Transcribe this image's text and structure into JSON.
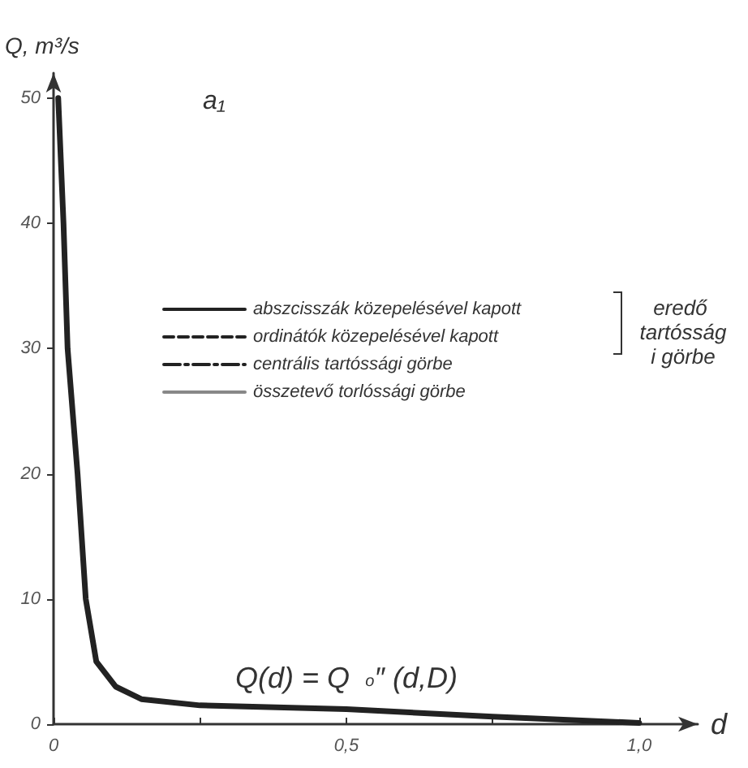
{
  "chart_data": {
    "type": "line",
    "xlabel": "d",
    "ylabel": "Q, m³/s",
    "x": [
      0.008,
      0.017,
      0.024,
      0.041,
      0.055,
      0.073,
      0.106,
      0.15,
      0.25,
      0.5,
      0.75,
      1.0
    ],
    "series": [
      {
        "name": "abszcisszák közepelésével kapott",
        "color": "#222222",
        "line_style": "solid",
        "values": [
          50,
          40,
          30,
          20,
          10,
          5,
          3,
          2,
          1.5,
          1.2,
          0.6,
          0.1
        ]
      },
      {
        "name": "ordinátók közepelésével kapott",
        "color": "#222222",
        "line_style": "dashed",
        "values": [
          null,
          null,
          null,
          null,
          null,
          null,
          null,
          null,
          null,
          null,
          null,
          null
        ]
      },
      {
        "name": "centrális tartóssági görbe",
        "color": "#222222",
        "line_style": "dashdot",
        "values": [
          null,
          null,
          null,
          null,
          null,
          null,
          null,
          null,
          null,
          null,
          null,
          null
        ]
      },
      {
        "name": "összetevő torlóssági görbe",
        "color": "#888888",
        "line_style": "solid",
        "values": [
          null,
          null,
          null,
          null,
          null,
          null,
          null,
          null,
          null,
          null,
          null,
          null
        ]
      }
    ],
    "xlim": [
      0,
      1.1
    ],
    "xticks": [
      {
        "value": 0,
        "label": "0"
      },
      {
        "value": 0.25,
        "label": null
      },
      {
        "value": 0.5,
        "label": "0,5"
      },
      {
        "value": 0.75,
        "label": null
      },
      {
        "value": 1.0,
        "label": "1,0"
      }
    ],
    "ylim": [
      0,
      52
    ],
    "yticks": [
      0,
      10,
      20,
      30,
      40,
      50
    ],
    "grid": false,
    "legend": "top left",
    "marker": "none",
    "annotations": [
      "a₁",
      "eredő tartóssági görbe",
      "Q(d) = Q$_{o}$″ (d,D)"
    ]
  }
}
